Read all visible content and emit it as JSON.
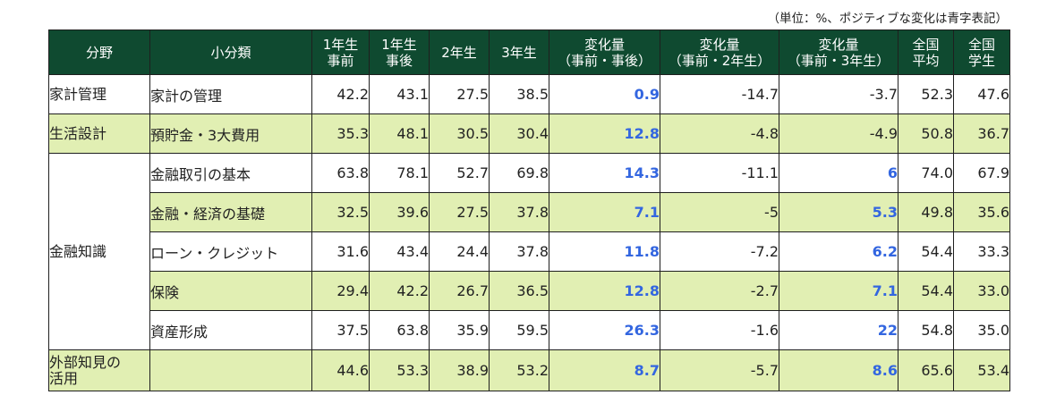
{
  "note": "（単位：%、ポジティブな変化は青字表記）",
  "header": {
    "field": "分野",
    "subcategory": "小分類",
    "y1_before": [
      "1年生",
      "事前"
    ],
    "y1_after": [
      "1年生",
      "事後"
    ],
    "y2": "2年生",
    "y3": "3年生",
    "change_before_after": [
      "変化量",
      "（事前・事後）"
    ],
    "change_before_y2": [
      "変化量",
      "（事前・2年生）"
    ],
    "change_before_y3": [
      "変化量",
      "（事前・3年生）"
    ],
    "national_avg": [
      "全国",
      "平均"
    ],
    "national_students": [
      "全国",
      "学生"
    ]
  },
  "categories": {
    "household": "家計管理",
    "life_planning": "生活設計",
    "financial_knowledge": "金融知識",
    "external_knowledge": [
      "外部知見の",
      "活用"
    ]
  },
  "rows": [
    {
      "sub": "家計の管理",
      "y1_before": "42.2",
      "y1_after": "43.1",
      "y2": "27.5",
      "y3": "38.5",
      "c1": "0.9",
      "c2": "-14.7",
      "c3": "-3.7",
      "nat_avg": "52.3",
      "nat_stu": "47.6"
    },
    {
      "sub": "預貯金・3大費用",
      "y1_before": "35.3",
      "y1_after": "48.1",
      "y2": "30.5",
      "y3": "30.4",
      "c1": "12.8",
      "c2": "-4.8",
      "c3": "-4.9",
      "nat_avg": "50.8",
      "nat_stu": "36.7"
    },
    {
      "sub": "金融取引の基本",
      "y1_before": "63.8",
      "y1_after": "78.1",
      "y2": "52.7",
      "y3": "69.8",
      "c1": "14.3",
      "c2": "-11.1",
      "c3": "6",
      "nat_avg": "74.0",
      "nat_stu": "67.9"
    },
    {
      "sub": "金融・経済の基礎",
      "y1_before": "32.5",
      "y1_after": "39.6",
      "y2": "27.5",
      "y3": "37.8",
      "c1": "7.1",
      "c2": "-5",
      "c3": "5.3",
      "nat_avg": "49.8",
      "nat_stu": "35.6"
    },
    {
      "sub": "ローン・クレジット",
      "y1_before": "31.6",
      "y1_after": "43.4",
      "y2": "24.4",
      "y3": "37.8",
      "c1": "11.8",
      "c2": "-7.2",
      "c3": "6.2",
      "nat_avg": "54.4",
      "nat_stu": "33.3"
    },
    {
      "sub": "保険",
      "y1_before": "29.4",
      "y1_after": "42.2",
      "y2": "26.7",
      "y3": "36.5",
      "c1": "12.8",
      "c2": "-2.7",
      "c3": "7.1",
      "nat_avg": "54.4",
      "nat_stu": "33.0"
    },
    {
      "sub": "資産形成",
      "y1_before": "37.5",
      "y1_after": "63.8",
      "y2": "35.9",
      "y3": "59.5",
      "c1": "26.3",
      "c2": "-1.6",
      "c3": "22",
      "nat_avg": "54.8",
      "nat_stu": "35.0"
    },
    {
      "sub": "",
      "y1_before": "44.6",
      "y1_after": "53.3",
      "y2": "38.9",
      "y3": "53.2",
      "c1": "8.7",
      "c2": "-5.7",
      "c3": "8.6",
      "nat_avg": "65.6",
      "nat_stu": "53.4"
    }
  ],
  "colors": {
    "header_bg": "#0f4a30",
    "alt_row_bg": "#e1efb3",
    "positive_text": "#3366e0"
  }
}
